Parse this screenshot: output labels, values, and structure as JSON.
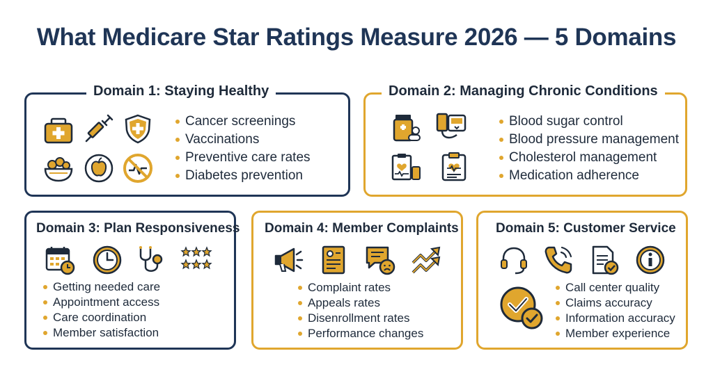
{
  "title": "What Medicare Star Ratings Measure 2026 — 5 Domains",
  "colors": {
    "navy": "#1f3556",
    "gold": "#e0a62e",
    "text": "#1e2a3a"
  },
  "domains": [
    {
      "title": "Domain 1: Staying Healthy",
      "icons": [
        "first-aid-kit-icon",
        "syringe-icon",
        "shield-plus-icon",
        "salad-bowl-icon",
        "apple-icon",
        "no-unhealthy-icon"
      ],
      "items": [
        "Cancer screenings",
        "Vaccinations",
        "Preventive care rates",
        "Diabetes prevention"
      ]
    },
    {
      "title": "Domain 2: Managing Chronic Conditions",
      "icons": [
        "pill-bottle-icon",
        "blood-pressure-monitor-icon",
        "heart-chart-clipboard-icon",
        "medical-clipboard-icon"
      ],
      "items": [
        "Blood sugar control",
        "Blood pressure management",
        "Cholesterol management",
        "Medication adherence"
      ]
    },
    {
      "title": "Domain 3: Plan Responsiveness",
      "icons": [
        "calendar-clock-icon",
        "clock-icon",
        "stethoscope-icon",
        "stars-icon"
      ],
      "items": [
        "Getting needed care",
        "Appointment access",
        "Care coordination",
        "Member satisfaction"
      ]
    },
    {
      "title": "Domain 4: Member Complaints",
      "icons": [
        "megaphone-icon",
        "complaint-form-icon",
        "sad-chat-icon",
        "trend-arrows-icon"
      ],
      "items": [
        "Complaint rates",
        "Appeals rates",
        "Disenrollment rates",
        "Performance changes"
      ]
    },
    {
      "title": "Domain 5: Customer Service",
      "icons": [
        "headset-icon",
        "phone-icon",
        "checked-document-icon",
        "info-icon",
        "double-checkmark-icon"
      ],
      "items": [
        "Call center quality",
        "Claims accuracy",
        "Information accuracy",
        "Member experience"
      ]
    }
  ]
}
